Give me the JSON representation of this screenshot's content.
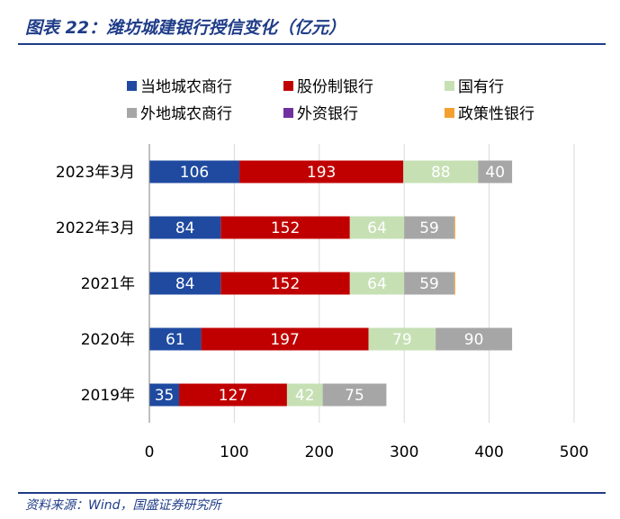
{
  "header": {
    "title": "图表 22：潍坊城建银行授信变化（亿元）"
  },
  "footer": {
    "source": "资料来源：Wind，国盛证券研究所"
  },
  "colors": {
    "accent": "#1f3c88",
    "grid": "#d9d9d9"
  },
  "chart_data": {
    "type": "bar",
    "orientation": "horizontal",
    "stacked": true,
    "categories": [
      "2023年3月",
      "2022年3月",
      "2021年",
      "2020年",
      "2019年"
    ],
    "series": [
      {
        "name": "当地城农商行",
        "color": "#1f4aa0",
        "values": [
          106,
          84,
          84,
          61,
          35
        ]
      },
      {
        "name": "股份制银行",
        "color": "#c00000",
        "values": [
          193,
          152,
          152,
          197,
          127
        ]
      },
      {
        "name": "国有行",
        "color": "#c6e0b4",
        "values": [
          88,
          64,
          64,
          79,
          42
        ]
      },
      {
        "name": "外地城农商行",
        "color": "#a6a6a6",
        "values": [
          40,
          59,
          59,
          90,
          75
        ]
      },
      {
        "name": "外资银行",
        "color": "#7030a0",
        "values": [
          0,
          0,
          0,
          0,
          0
        ]
      },
      {
        "name": "政策性银行",
        "color": "#f4a030",
        "values": [
          0,
          1,
          1,
          0,
          0
        ]
      }
    ],
    "xlim": [
      0,
      500
    ],
    "xticks": [
      0,
      100,
      200,
      300,
      400,
      500
    ],
    "grid": "vertical",
    "legend": "top"
  }
}
